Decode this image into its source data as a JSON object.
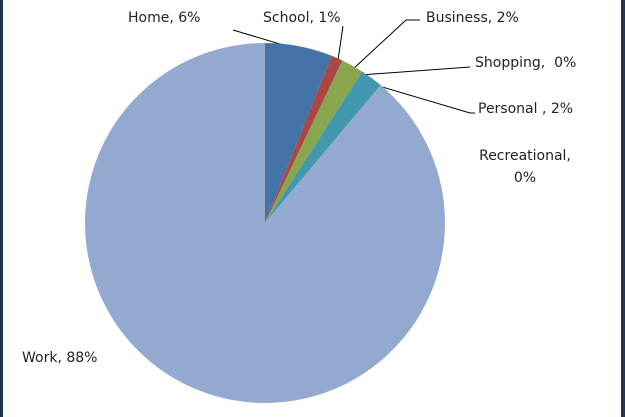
{
  "chart_data": {
    "type": "pie",
    "categories": [
      "Home",
      "School",
      "Business",
      "Shopping",
      "Personal",
      "Recreational",
      "Work"
    ],
    "values": [
      6,
      1,
      2,
      0,
      2,
      0,
      88
    ],
    "value_labels": [
      "Home, 6%",
      "School, 1%",
      "Business, 2%",
      "Shopping,  0%",
      "Personal , 2%",
      "Recreational, 0%",
      "Work, 88%"
    ],
    "colors": [
      "#4572a7",
      "#aa4643",
      "#89a54e",
      "#71588f",
      "#4198af",
      "#db843d",
      "#93a9cf"
    ]
  }
}
